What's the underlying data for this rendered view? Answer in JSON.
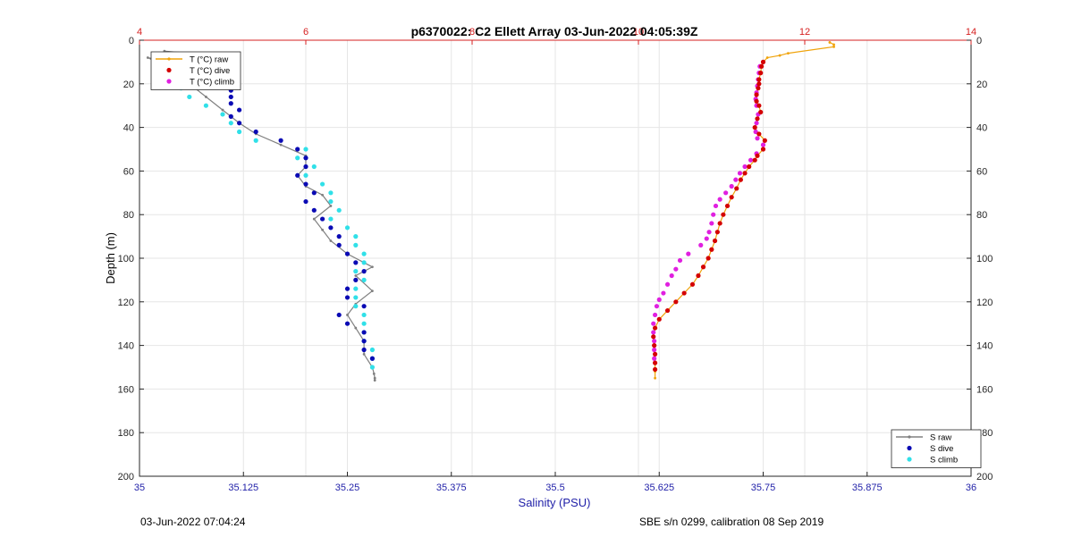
{
  "footer": {
    "left": "03-Jun-2022 07:04:24",
    "right": "SBE s/n 0299, calibration 08 Sep 2019"
  },
  "colors": {
    "salinity_axis": "#1f1fa8",
    "temperature_axis": "#d62020",
    "T_raw": "#f0a30a",
    "T_dive": "#d40000",
    "T_climb": "#e020e0",
    "S_raw": "#808080",
    "S_dive": "#0a0ab4",
    "S_climb": "#30e0e8"
  },
  "chart_data": {
    "type": "scatter",
    "title": "p6370022: C2 Ellett Array 03-Jun-2022 04:05:39Z",
    "xlabel": "Salinity (PSU)",
    "ylabel": "Depth (m)",
    "xlim": [
      35,
      36
    ],
    "x2lim": [
      4,
      14
    ],
    "ylim": [
      0,
      200
    ],
    "y_reversed": true,
    "grid": true,
    "xticks": [
      "35",
      "35.125",
      "35.25",
      "35.375",
      "35.5",
      "35.625",
      "35.75",
      "35.875",
      "36"
    ],
    "x2ticks": [
      "4",
      "6",
      "8",
      "10",
      "12",
      "14"
    ],
    "yticks": [
      "0",
      "20",
      "40",
      "60",
      "80",
      "100",
      "120",
      "140",
      "160",
      "180",
      "200"
    ],
    "legend_T": {
      "placement": "top-left",
      "entries": [
        "T (°C) raw",
        "T (°C) dive",
        "T (°C) climb"
      ]
    },
    "legend_S": {
      "placement": "bottom-right",
      "entries": [
        "S raw",
        "S dive",
        "S climb"
      ]
    },
    "series": [
      {
        "name": "T (°C) raw",
        "axis": "top",
        "style": "line-marker",
        "points": [
          [
            12.3,
            1
          ],
          [
            12.35,
            2
          ],
          [
            12.35,
            3
          ],
          [
            11.8,
            6
          ],
          [
            11.7,
            7
          ],
          [
            11.55,
            8
          ],
          [
            11.5,
            10
          ],
          [
            11.48,
            12
          ],
          [
            11.47,
            15
          ],
          [
            11.45,
            18
          ],
          [
            11.45,
            20
          ],
          [
            11.44,
            22
          ],
          [
            11.42,
            25
          ],
          [
            11.42,
            28
          ],
          [
            11.45,
            30
          ],
          [
            11.47,
            33
          ],
          [
            11.43,
            36
          ],
          [
            11.4,
            40
          ],
          [
            11.45,
            43
          ],
          [
            11.52,
            46
          ],
          [
            11.5,
            50
          ],
          [
            11.43,
            53
          ],
          [
            11.4,
            55
          ],
          [
            11.33,
            58
          ],
          [
            11.28,
            61
          ],
          [
            11.23,
            64
          ],
          [
            11.18,
            68
          ],
          [
            11.12,
            72
          ],
          [
            11.07,
            76
          ],
          [
            11.02,
            80
          ],
          [
            10.98,
            84
          ],
          [
            10.95,
            88
          ],
          [
            10.92,
            92
          ],
          [
            10.88,
            96
          ],
          [
            10.84,
            100
          ],
          [
            10.78,
            104
          ],
          [
            10.72,
            108
          ],
          [
            10.65,
            112
          ],
          [
            10.55,
            116
          ],
          [
            10.45,
            120
          ],
          [
            10.35,
            124
          ],
          [
            10.25,
            128
          ],
          [
            10.2,
            132
          ],
          [
            10.18,
            136
          ],
          [
            10.19,
            140
          ],
          [
            10.2,
            144
          ],
          [
            10.2,
            148
          ],
          [
            10.2,
            152
          ],
          [
            10.2,
            155
          ]
        ]
      },
      {
        "name": "T (°C) dive",
        "axis": "top",
        "style": "marker",
        "points": [
          [
            11.5,
            10
          ],
          [
            11.48,
            12
          ],
          [
            11.47,
            15
          ],
          [
            11.45,
            18
          ],
          [
            11.45,
            20
          ],
          [
            11.44,
            22
          ],
          [
            11.42,
            25
          ],
          [
            11.42,
            28
          ],
          [
            11.45,
            30
          ],
          [
            11.47,
            33
          ],
          [
            11.43,
            36
          ],
          [
            11.4,
            40
          ],
          [
            11.45,
            43
          ],
          [
            11.52,
            46
          ],
          [
            11.5,
            50
          ],
          [
            11.43,
            53
          ],
          [
            11.4,
            55
          ],
          [
            11.33,
            58
          ],
          [
            11.28,
            61
          ],
          [
            11.23,
            64
          ],
          [
            11.18,
            68
          ],
          [
            11.12,
            72
          ],
          [
            11.07,
            76
          ],
          [
            11.02,
            80
          ],
          [
            10.98,
            84
          ],
          [
            10.95,
            88
          ],
          [
            10.92,
            92
          ],
          [
            10.88,
            96
          ],
          [
            10.84,
            100
          ],
          [
            10.78,
            104
          ],
          [
            10.72,
            108
          ],
          [
            10.65,
            112
          ],
          [
            10.55,
            116
          ],
          [
            10.45,
            120
          ],
          [
            10.35,
            124
          ],
          [
            10.25,
            128
          ],
          [
            10.2,
            132
          ],
          [
            10.18,
            136
          ],
          [
            10.19,
            140
          ],
          [
            10.2,
            144
          ],
          [
            10.2,
            148
          ],
          [
            10.2,
            151
          ]
        ]
      },
      {
        "name": "T (°C) climb",
        "axis": "top",
        "style": "marker",
        "points": [
          [
            11.46,
            12
          ],
          [
            11.45,
            15
          ],
          [
            11.44,
            18
          ],
          [
            11.43,
            21
          ],
          [
            11.42,
            24
          ],
          [
            11.41,
            27
          ],
          [
            11.42,
            30
          ],
          [
            11.44,
            34
          ],
          [
            11.42,
            38
          ],
          [
            11.41,
            42
          ],
          [
            11.43,
            45
          ],
          [
            11.5,
            48
          ],
          [
            11.42,
            52
          ],
          [
            11.35,
            55
          ],
          [
            11.28,
            58
          ],
          [
            11.22,
            61
          ],
          [
            11.17,
            64
          ],
          [
            11.12,
            67
          ],
          [
            11.05,
            70
          ],
          [
            10.98,
            73
          ],
          [
            10.93,
            76
          ],
          [
            10.9,
            80
          ],
          [
            10.88,
            84
          ],
          [
            10.85,
            88
          ],
          [
            10.82,
            91
          ],
          [
            10.75,
            94
          ],
          [
            10.6,
            98
          ],
          [
            10.5,
            101
          ],
          [
            10.45,
            105
          ],
          [
            10.4,
            108
          ],
          [
            10.35,
            112
          ],
          [
            10.3,
            116
          ],
          [
            10.25,
            119
          ],
          [
            10.22,
            122
          ],
          [
            10.2,
            126
          ],
          [
            10.18,
            130
          ],
          [
            10.18,
            134
          ],
          [
            10.19,
            138
          ],
          [
            10.19,
            142
          ],
          [
            10.19,
            146
          ]
        ]
      },
      {
        "name": "S raw",
        "axis": "bottom",
        "style": "line-marker",
        "points": [
          [
            35.03,
            5
          ],
          [
            35.06,
            6
          ],
          [
            35.08,
            6
          ],
          [
            35.11,
            7
          ],
          [
            35.12,
            8
          ],
          [
            35.11,
            10
          ],
          [
            35.12,
            12
          ],
          [
            35.1,
            16
          ],
          [
            35.01,
            8
          ],
          [
            35.02,
            10
          ],
          [
            35.03,
            14
          ],
          [
            35.06,
            20
          ],
          [
            35.08,
            26
          ],
          [
            35.1,
            32
          ],
          [
            35.12,
            38
          ],
          [
            35.14,
            43
          ],
          [
            35.17,
            48
          ],
          [
            35.2,
            53
          ],
          [
            35.2,
            58
          ],
          [
            35.19,
            62
          ],
          [
            35.2,
            67
          ],
          [
            35.22,
            71
          ],
          [
            35.23,
            76
          ],
          [
            35.21,
            82
          ],
          [
            35.22,
            87
          ],
          [
            35.23,
            92
          ],
          [
            35.25,
            98
          ],
          [
            35.28,
            104
          ],
          [
            35.26,
            108
          ],
          [
            35.28,
            115
          ],
          [
            35.26,
            121
          ],
          [
            35.25,
            126
          ],
          [
            35.26,
            132
          ],
          [
            35.27,
            138
          ],
          [
            35.27,
            144
          ],
          [
            35.28,
            150
          ],
          [
            35.282,
            153
          ],
          [
            35.283,
            155
          ],
          [
            35.283,
            156
          ]
        ]
      },
      {
        "name": "S dive",
        "axis": "bottom",
        "style": "marker",
        "points": [
          [
            35.1,
            10
          ],
          [
            35.11,
            13
          ],
          [
            35.11,
            16
          ],
          [
            35.11,
            20
          ],
          [
            35.11,
            23
          ],
          [
            35.11,
            26
          ],
          [
            35.11,
            29
          ],
          [
            35.12,
            32
          ],
          [
            35.11,
            35
          ],
          [
            35.12,
            38
          ],
          [
            35.14,
            42
          ],
          [
            35.17,
            46
          ],
          [
            35.19,
            50
          ],
          [
            35.2,
            54
          ],
          [
            35.2,
            58
          ],
          [
            35.19,
            62
          ],
          [
            35.2,
            66
          ],
          [
            35.21,
            70
          ],
          [
            35.2,
            74
          ],
          [
            35.21,
            78
          ],
          [
            35.22,
            82
          ],
          [
            35.23,
            86
          ],
          [
            35.24,
            90
          ],
          [
            35.24,
            94
          ],
          [
            35.25,
            98
          ],
          [
            35.26,
            102
          ],
          [
            35.27,
            106
          ],
          [
            35.26,
            110
          ],
          [
            35.25,
            114
          ],
          [
            35.25,
            118
          ],
          [
            35.27,
            122
          ],
          [
            35.24,
            126
          ],
          [
            35.25,
            130
          ],
          [
            35.27,
            134
          ],
          [
            35.27,
            138
          ],
          [
            35.27,
            142
          ],
          [
            35.28,
            146
          ]
        ]
      },
      {
        "name": "S climb",
        "axis": "bottom",
        "style": "marker",
        "points": [
          [
            35.02,
            10
          ],
          [
            35.03,
            14
          ],
          [
            35.04,
            18
          ],
          [
            35.05,
            22
          ],
          [
            35.06,
            26
          ],
          [
            35.08,
            30
          ],
          [
            35.1,
            34
          ],
          [
            35.11,
            38
          ],
          [
            35.12,
            42
          ],
          [
            35.14,
            46
          ],
          [
            35.2,
            50
          ],
          [
            35.19,
            54
          ],
          [
            35.21,
            58
          ],
          [
            35.2,
            62
          ],
          [
            35.22,
            66
          ],
          [
            35.23,
            70
          ],
          [
            35.23,
            74
          ],
          [
            35.24,
            78
          ],
          [
            35.23,
            82
          ],
          [
            35.25,
            86
          ],
          [
            35.26,
            90
          ],
          [
            35.26,
            94
          ],
          [
            35.27,
            98
          ],
          [
            35.27,
            102
          ],
          [
            35.26,
            106
          ],
          [
            35.27,
            110
          ],
          [
            35.26,
            114
          ],
          [
            35.26,
            118
          ],
          [
            35.26,
            122
          ],
          [
            35.27,
            126
          ],
          [
            35.27,
            130
          ],
          [
            35.27,
            134
          ],
          [
            35.27,
            138
          ],
          [
            35.28,
            142
          ],
          [
            35.28,
            146
          ],
          [
            35.28,
            150
          ]
        ]
      }
    ]
  }
}
